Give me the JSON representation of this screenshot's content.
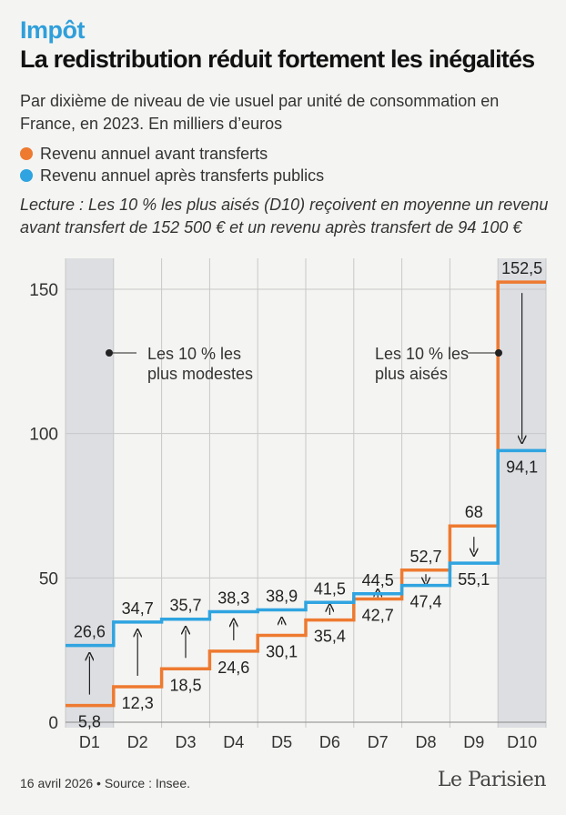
{
  "header": {
    "kicker": "Impôt",
    "title": "La redistribution réduit fortement les inégalités",
    "subtitle": "Par dixième de niveau de vie usuel par unité de consommation en France, en 2023. En milliers d’euros"
  },
  "legend": {
    "before_label": "Revenu annuel avant transferts",
    "after_label": "Revenu annuel après transferts publics"
  },
  "reading_note": "Lecture : Les 10 % les plus aisés (D10) reçoivent en moyenne un revenu avant transfert de 152 500 € et un revenu après transfert de 94 100 €",
  "annotations": {
    "left_line1": "Les 10 % les",
    "left_line2": "plus modestes",
    "right_line1": "Les 10 % les",
    "right_line2": "plus aisés"
  },
  "colors": {
    "before": "#ee7a30",
    "after": "#2fa4e0",
    "highlight": "#dcdee2",
    "grid": "#c8c8c8"
  },
  "chart_data": {
    "type": "line",
    "step": true,
    "categories": [
      "D1",
      "D2",
      "D3",
      "D4",
      "D5",
      "D6",
      "D7",
      "D8",
      "D9",
      "D10"
    ],
    "series": [
      {
        "name": "Revenu annuel avant transferts",
        "values": [
          5.8,
          12.3,
          18.5,
          24.6,
          30.1,
          35.4,
          42.7,
          52.7,
          68,
          152.5
        ]
      },
      {
        "name": "Revenu annuel après transferts publics",
        "values": [
          26.6,
          34.7,
          35.7,
          38.3,
          38.9,
          41.5,
          44.5,
          47.4,
          55.1,
          94.1
        ]
      }
    ],
    "before_labels": [
      "5,8",
      "12,3",
      "18,5",
      "24,6",
      "30,1",
      "35,4",
      "42,7",
      "52,7",
      "68",
      "152,5"
    ],
    "after_labels": [
      "26,6",
      "34,7",
      "35,7",
      "38,3",
      "38,9",
      "41,5",
      "44,5",
      "47,4",
      "55,1",
      "94,1"
    ],
    "yticks": [
      0,
      50,
      100,
      150
    ],
    "ylim": [
      0,
      160
    ],
    "highlighted": [
      "D1",
      "D10"
    ],
    "grid": true
  },
  "footer": {
    "date_source": "16 avril 2026 • Source : Insee.",
    "logo_main": "Le Parisien"
  }
}
